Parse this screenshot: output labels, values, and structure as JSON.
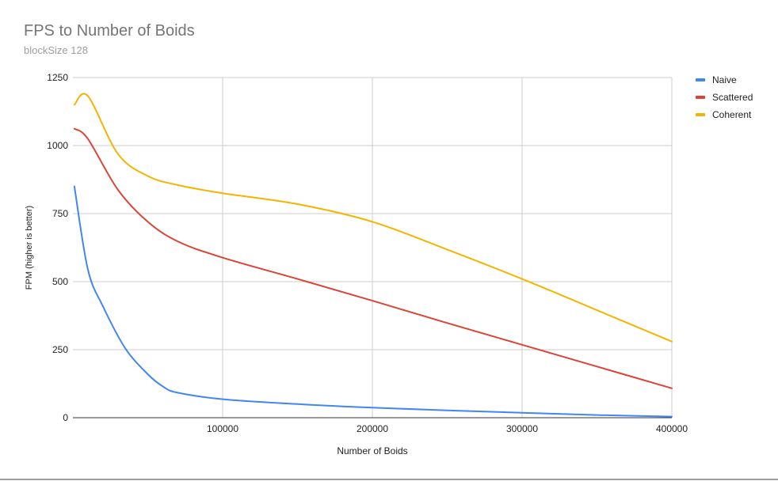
{
  "chart_data": {
    "type": "line",
    "title": "FPS to Number of Boids",
    "subtitle": "blockSize 128",
    "xlabel": "Number of Boids",
    "ylabel": "FPM (higher is better)",
    "xlim": [
      0,
      400000
    ],
    "ylim": [
      0,
      1250
    ],
    "xticks": [
      100000,
      200000,
      300000,
      400000
    ],
    "yticks": [
      0,
      250,
      500,
      750,
      1000,
      1250
    ],
    "grid": true,
    "legend_position": "right",
    "series": [
      {
        "name": "Naive",
        "color": "#4285f4",
        "x": [
          1000,
          10000,
          20000,
          35000,
          50000,
          60000,
          70000,
          100000,
          150000,
          200000,
          250000,
          300000,
          350000,
          400000
        ],
        "values": [
          850,
          545,
          410,
          255,
          160,
          115,
          92,
          68,
          50,
          37,
          27,
          18,
          10,
          4
        ]
      },
      {
        "name": "Scattered",
        "color": "#db4437",
        "x": [
          1000,
          10000,
          30000,
          50000,
          70000,
          100000,
          150000,
          200000,
          250000,
          300000,
          350000,
          400000
        ],
        "values": [
          1062,
          1025,
          838,
          720,
          648,
          588,
          510,
          430,
          348,
          268,
          188,
          108
        ]
      },
      {
        "name": "Coherent",
        "color": "#f4b400",
        "x": [
          1000,
          10000,
          30000,
          50000,
          70000,
          100000,
          150000,
          200000,
          250000,
          300000,
          350000,
          400000
        ],
        "values": [
          1150,
          1182,
          970,
          888,
          855,
          825,
          785,
          720,
          618,
          510,
          395,
          280
        ]
      }
    ]
  }
}
